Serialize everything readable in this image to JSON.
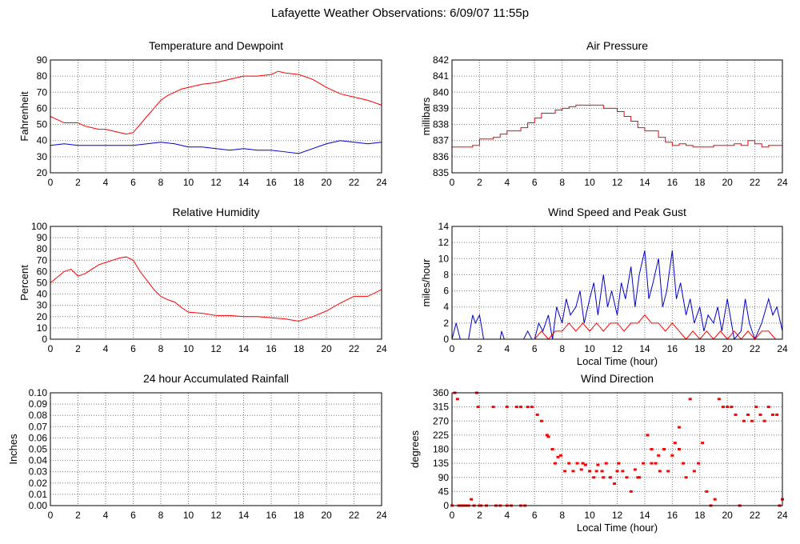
{
  "page": {
    "title": "Lafayette Weather Observations: 6/09/07 11:55p"
  },
  "chart_data": [
    {
      "id": "temp",
      "type": "line",
      "title": "Temperature and Dewpoint",
      "xlabel": "",
      "ylabel": "Fahrenheit",
      "xlim": [
        0,
        24
      ],
      "ylim": [
        20,
        90
      ],
      "xticks": [
        0,
        2,
        4,
        6,
        8,
        10,
        12,
        14,
        16,
        18,
        20,
        22,
        24
      ],
      "yticks": [
        20,
        30,
        40,
        50,
        60,
        70,
        80,
        90
      ],
      "grid": true,
      "series": [
        {
          "color": "#ff0000",
          "style": "line",
          "x": [
            0,
            0.5,
            1,
            1.5,
            2,
            2.5,
            3,
            3.5,
            4,
            4.5,
            5,
            5.5,
            6,
            6.5,
            7,
            7.5,
            8,
            8.5,
            9,
            9.5,
            10,
            11,
            12,
            13,
            14,
            15,
            16,
            16.5,
            17,
            18,
            19,
            20,
            21,
            22,
            23,
            24
          ],
          "y": [
            55,
            53,
            51,
            51,
            51,
            49,
            48,
            47,
            47,
            46,
            45,
            44,
            45,
            50,
            55,
            60,
            65,
            68,
            70,
            72,
            73,
            75,
            76,
            78,
            80,
            80,
            81,
            83,
            82,
            81,
            78,
            73,
            69,
            67,
            65,
            62
          ]
        },
        {
          "color": "#0000cc",
          "style": "line",
          "x": [
            0,
            1,
            2,
            3,
            4,
            5,
            6,
            7,
            8,
            9,
            10,
            11,
            12,
            13,
            14,
            15,
            16,
            17,
            18,
            19,
            20,
            21,
            22,
            23,
            24
          ],
          "y": [
            37,
            38,
            37,
            37,
            37,
            37,
            37,
            38,
            39,
            38,
            36,
            36,
            35,
            34,
            35,
            34,
            34,
            33,
            32,
            35,
            38,
            40,
            39,
            38,
            39
          ]
        }
      ]
    },
    {
      "id": "pressure",
      "type": "line",
      "title": "Air Pressure",
      "xlabel": "",
      "ylabel": "millibars",
      "xlim": [
        0,
        24
      ],
      "ylim": [
        835,
        842
      ],
      "xticks": [
        0,
        2,
        4,
        6,
        8,
        10,
        12,
        14,
        16,
        18,
        20,
        22,
        24
      ],
      "yticks": [
        835,
        836,
        837,
        838,
        839,
        840,
        841,
        842
      ],
      "grid": true,
      "series": [
        {
          "color": "#ff0000",
          "style": "step",
          "x": [
            0,
            1.5,
            2,
            3,
            3.5,
            4,
            5,
            5.5,
            6,
            6.5,
            7,
            7.5,
            8,
            8.5,
            9,
            10,
            11,
            12,
            12.5,
            13,
            13.5,
            14,
            15,
            15.5,
            16,
            16.5,
            17,
            17.5,
            18,
            19,
            20,
            20.5,
            21,
            21.5,
            22,
            22.5,
            23,
            23.5,
            24
          ],
          "y": [
            836.6,
            836.7,
            837.1,
            837.2,
            837.4,
            837.6,
            837.8,
            838.1,
            838.4,
            838.7,
            838.7,
            838.9,
            839.0,
            839.1,
            839.2,
            839.2,
            839.0,
            838.8,
            838.5,
            838.2,
            837.8,
            837.6,
            837.2,
            836.9,
            836.7,
            836.8,
            836.7,
            836.6,
            836.6,
            836.7,
            836.7,
            836.8,
            836.7,
            837.0,
            836.8,
            836.6,
            836.7,
            836.7,
            836.8
          ]
        }
      ]
    },
    {
      "id": "humidity",
      "type": "line",
      "title": "Relative Humidity",
      "xlabel": "",
      "ylabel": "Percent",
      "xlim": [
        0,
        24
      ],
      "ylim": [
        0,
        100
      ],
      "xticks": [
        0,
        2,
        4,
        6,
        8,
        10,
        12,
        14,
        16,
        18,
        20,
        22,
        24
      ],
      "yticks": [
        0,
        10,
        20,
        30,
        40,
        50,
        60,
        70,
        80,
        90,
        100
      ],
      "grid": true,
      "series": [
        {
          "color": "#ff0000",
          "style": "line",
          "x": [
            0,
            0.5,
            1,
            1.5,
            2,
            2.5,
            3,
            3.5,
            4,
            4.5,
            5,
            5.5,
            6,
            6.5,
            7,
            7.5,
            8,
            8.5,
            9,
            9.5,
            10,
            11,
            12,
            13,
            14,
            15,
            16,
            17,
            18,
            19,
            20,
            21,
            22,
            23,
            24
          ],
          "y": [
            50,
            55,
            60,
            62,
            56,
            58,
            62,
            66,
            68,
            70,
            72,
            73,
            70,
            60,
            52,
            44,
            38,
            35,
            33,
            28,
            24,
            23,
            21,
            21,
            20,
            20,
            19,
            18,
            16,
            20,
            25,
            32,
            38,
            38,
            44
          ]
        }
      ]
    },
    {
      "id": "wind",
      "type": "line",
      "title": "Wind Speed and Peak Gust",
      "xlabel": "Local Time (hour)",
      "ylabel": "miles/hour",
      "xlim": [
        0,
        24
      ],
      "ylim": [
        0,
        14
      ],
      "xticks": [
        0,
        2,
        4,
        6,
        8,
        10,
        12,
        14,
        16,
        18,
        20,
        22,
        24
      ],
      "yticks": [
        0,
        2,
        4,
        6,
        8,
        10,
        12,
        14
      ],
      "grid": true,
      "series": [
        {
          "color": "#0000cc",
          "style": "line",
          "x": [
            0,
            0.3,
            0.6,
            0.9,
            1.2,
            1.5,
            1.7,
            2.0,
            2.3,
            3.5,
            3.6,
            3.8,
            5.2,
            5.5,
            5.8,
            6.0,
            6.3,
            6.6,
            7.0,
            7.3,
            7.6,
            8.0,
            8.3,
            8.6,
            9.0,
            9.3,
            9.6,
            10.0,
            10.3,
            10.6,
            11.0,
            11.3,
            11.6,
            12.0,
            12.3,
            12.6,
            13.0,
            13.3,
            13.6,
            14.0,
            14.3,
            14.6,
            15.0,
            15.3,
            15.6,
            16.0,
            16.3,
            16.6,
            17.0,
            17.3,
            17.6,
            18.0,
            18.3,
            18.6,
            19.0,
            19.3,
            19.6,
            20.0,
            20.5,
            21.0,
            21.3,
            21.6,
            22.0,
            22.5,
            23.0,
            23.3,
            23.6,
            24.0
          ],
          "y": [
            0,
            2,
            0,
            0,
            0,
            3,
            2,
            3,
            0,
            0,
            1,
            0,
            0,
            1,
            0,
            0,
            2,
            1,
            3,
            0,
            4,
            2,
            5,
            3,
            4,
            6,
            2,
            5,
            7,
            3,
            8,
            4,
            6,
            3,
            7,
            5,
            9,
            4,
            8,
            11,
            5,
            7,
            10,
            4,
            6,
            11,
            5,
            7,
            3,
            5,
            2,
            4,
            1,
            3,
            2,
            4,
            1,
            5,
            0,
            1,
            5,
            2,
            0,
            2,
            5,
            3,
            4,
            1
          ]
        },
        {
          "color": "#ff0000",
          "style": "line",
          "x": [
            0,
            6.0,
            6.5,
            7.0,
            7.5,
            8.0,
            8.5,
            9.0,
            9.5,
            10.0,
            10.5,
            11.0,
            11.5,
            12.0,
            12.5,
            13.0,
            13.5,
            14.0,
            14.5,
            15.0,
            15.5,
            16.0,
            16.5,
            17.0,
            17.5,
            18.0,
            18.5,
            19.0,
            19.5,
            20.0,
            20.5,
            21.0,
            21.5,
            22.0,
            22.5,
            23.0,
            23.5,
            24.0
          ],
          "y": [
            0,
            0,
            1,
            0,
            1,
            1,
            2,
            1,
            2,
            1,
            2,
            1,
            2,
            2,
            1,
            2,
            2,
            3,
            2,
            2,
            1,
            2,
            1,
            0,
            1,
            0,
            1,
            0,
            1,
            0,
            1,
            0,
            1,
            0,
            1,
            1,
            0,
            0
          ]
        }
      ]
    },
    {
      "id": "rain",
      "type": "line",
      "title": "24 hour Accumulated Rainfall",
      "xlabel": "",
      "ylabel": "Inches",
      "xlim": [
        0,
        24
      ],
      "ylim": [
        0,
        0.1
      ],
      "xticks": [
        0,
        2,
        4,
        6,
        8,
        10,
        12,
        14,
        16,
        18,
        20,
        22,
        24
      ],
      "yticks": [
        "0.00",
        "0.01",
        "0.02",
        "0.03",
        "0.04",
        "0.05",
        "0.06",
        "0.07",
        "0.08",
        "0.09",
        "0.10"
      ],
      "grid": true,
      "series": [
        {
          "color": "#ff0000",
          "style": "line",
          "x": [
            0,
            24
          ],
          "y": [
            0,
            0
          ]
        }
      ]
    },
    {
      "id": "winddir",
      "type": "scatter",
      "title": "Wind Direction",
      "xlabel": "Local Time (hour)",
      "ylabel": "degrees",
      "xlim": [
        0,
        24
      ],
      "ylim": [
        0,
        360
      ],
      "xticks": [
        0,
        2,
        4,
        6,
        8,
        10,
        12,
        14,
        16,
        18,
        20,
        22,
        24
      ],
      "yticks": [
        0,
        45,
        90,
        135,
        180,
        225,
        270,
        315,
        360
      ],
      "grid": true,
      "series": [
        {
          "color": "#ff0000",
          "style": "points",
          "x": [
            0.0,
            0.2,
            0.4,
            0.6,
            0.8,
            1.0,
            1.2,
            1.4,
            1.6,
            1.8,
            1.9,
            2.1,
            2.5,
            3.0,
            3.5,
            3.2,
            4.0,
            4.3,
            4.7,
            5.0,
            5.3,
            5.5,
            5.8,
            6.2,
            6.5,
            6.9,
            7.0,
            7.3,
            7.5,
            7.7,
            7.9,
            8.2,
            8.5,
            8.8,
            9.1,
            9.4,
            9.7,
            10.0,
            10.3,
            10.6,
            10.9,
            11.2,
            11.5,
            11.8,
            12.1,
            12.4,
            12.7,
            13.0,
            13.3,
            13.6,
            13.9,
            14.2,
            14.5,
            14.8,
            15.1,
            15.4,
            15.7,
            16.0,
            16.2,
            16.5,
            16.8,
            17.0,
            17.3,
            17.6,
            17.9,
            18.2,
            18.5,
            18.8,
            19.1,
            19.4,
            19.7,
            20.0,
            20.3,
            20.6,
            20.9,
            21.2,
            21.5,
            21.8,
            22.1,
            22.4,
            22.7,
            23.0,
            23.3,
            23.6,
            23.8,
            24.0,
            4.0,
            5.0,
            2.0,
            1.0,
            0.5,
            12.0,
            13.5,
            14.5,
            15.0,
            9.5,
            10.5,
            11.0,
            16.5
          ],
          "y": [
            0,
            360,
            340,
            0,
            0,
            0,
            0,
            20,
            0,
            360,
            315,
            0,
            0,
            315,
            0,
            0,
            315,
            0,
            315,
            315,
            0,
            315,
            315,
            290,
            270,
            225,
            220,
            180,
            135,
            155,
            160,
            110,
            135,
            110,
            135,
            115,
            130,
            110,
            90,
            130,
            110,
            135,
            90,
            70,
            135,
            110,
            90,
            45,
            115,
            90,
            135,
            225,
            180,
            135,
            110,
            180,
            110,
            160,
            200,
            250,
            135,
            90,
            340,
            110,
            135,
            200,
            45,
            0,
            20,
            340,
            315,
            315,
            315,
            290,
            0,
            270,
            290,
            270,
            315,
            290,
            270,
            315,
            290,
            290,
            0,
            20,
            0,
            0,
            0,
            0,
            0,
            110,
            90,
            135,
            160,
            135,
            110,
            90,
            180
          ]
        }
      ]
    }
  ]
}
